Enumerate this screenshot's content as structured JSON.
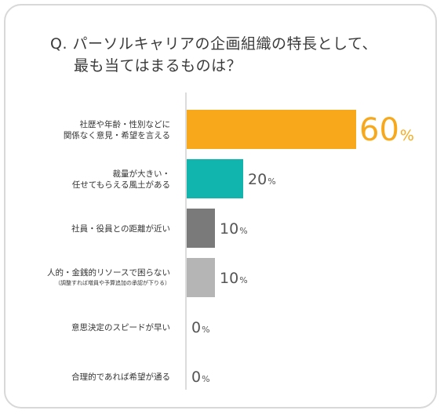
{
  "title": {
    "line1": "Q. パーソルキャリアの企画組織の特長として、",
    "line2": "最も当てはまるものは？"
  },
  "chart_data": {
    "type": "bar",
    "orientation": "horizontal",
    "unit": "%",
    "xlim": [
      0,
      100
    ],
    "categories": [
      {
        "lines": [
          "社歴や年齢・性別などに",
          "関係なく意見・希望を言える"
        ],
        "note": ""
      },
      {
        "lines": [
          "裁量が大きい・",
          "任せてもらえる風土がある"
        ],
        "note": ""
      },
      {
        "lines": [
          "社員・役員との距離が近い"
        ],
        "note": ""
      },
      {
        "lines": [
          "人的・金銭的リソースで困らない"
        ],
        "note": "（調整すれば増員や予算追加の承認が下りる）"
      },
      {
        "lines": [
          "意思決定のスピードが早い"
        ],
        "note": ""
      },
      {
        "lines": [
          "合理的であれば希望が通る"
        ],
        "note": ""
      }
    ],
    "values": [
      60,
      20,
      10,
      10,
      0,
      0
    ],
    "value_labels": [
      "60",
      "20",
      "10",
      "10",
      "0",
      "0"
    ],
    "colors": [
      "#f7a81b",
      "#12b5ad",
      "#7a7a7a",
      "#b5b5b5",
      "#b5b5b5",
      "#b5b5b5"
    ],
    "label_colors": [
      "#f7a81b",
      "#555555",
      "#555555",
      "#555555",
      "#555555",
      "#555555"
    ],
    "grid": false
  }
}
